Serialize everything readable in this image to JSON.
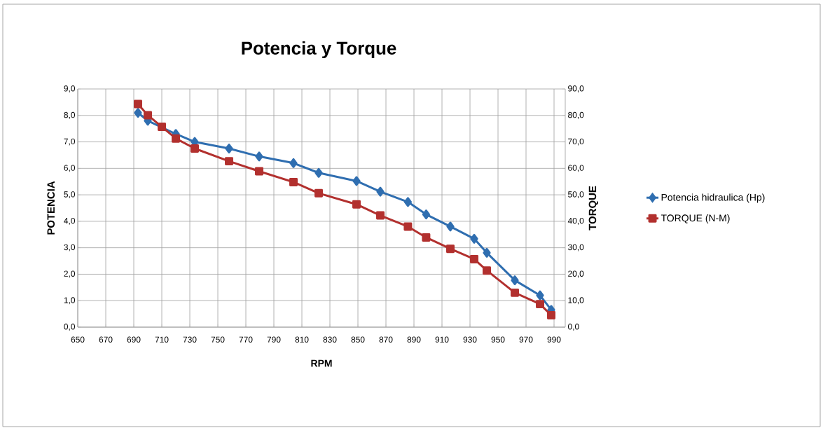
{
  "chart_data": {
    "type": "line",
    "title": "Potencia y Torque",
    "xlabel": "RPM",
    "ylabel": "POTENCIA",
    "y2label": "TORQUE",
    "xlim": [
      650,
      998
    ],
    "xticks": [
      650,
      670,
      690,
      710,
      730,
      750,
      770,
      790,
      810,
      830,
      850,
      870,
      890,
      910,
      930,
      950,
      970,
      990
    ],
    "ylim": [
      0,
      9
    ],
    "yticks": [
      {
        "value": 0,
        "label": "0,0"
      },
      {
        "value": 1,
        "label": "1,0"
      },
      {
        "value": 2,
        "label": "2,0"
      },
      {
        "value": 3,
        "label": "3,0"
      },
      {
        "value": 4,
        "label": "4,0"
      },
      {
        "value": 5,
        "label": "5,0"
      },
      {
        "value": 6,
        "label": "6,0"
      },
      {
        "value": 7,
        "label": "7,0"
      },
      {
        "value": 8,
        "label": "8,0"
      },
      {
        "value": 9,
        "label": "9,0"
      }
    ],
    "y2lim": [
      0,
      90
    ],
    "y2ticks": [
      {
        "value": 0,
        "label": "0,0"
      },
      {
        "value": 10,
        "label": "10,0"
      },
      {
        "value": 20,
        "label": "20,0"
      },
      {
        "value": 30,
        "label": "30,0"
      },
      {
        "value": 40,
        "label": "40,0"
      },
      {
        "value": 50,
        "label": "50,0"
      },
      {
        "value": 60,
        "label": "60,0"
      },
      {
        "value": 70,
        "label": "70,0"
      },
      {
        "value": 80,
        "label": "80,0"
      },
      {
        "value": 90,
        "label": "90,0"
      }
    ],
    "grid": true,
    "legend": "right",
    "line_style": "solid",
    "x": [
      693,
      700,
      710,
      720,
      733.5,
      758,
      779.5,
      804,
      822,
      849,
      866,
      885.7,
      898.7,
      916,
      933,
      942,
      962,
      980,
      988
    ],
    "series": [
      {
        "name": "Potencia hidraulica (Hp)",
        "color": "#2f6eb0",
        "marker": "diamond",
        "values": [
          8.1,
          7.8,
          null,
          7.3,
          7.0,
          6.75,
          6.45,
          6.2,
          5.83,
          5.52,
          5.12,
          4.73,
          4.26,
          3.8,
          3.34,
          2.81,
          1.77,
          1.2,
          0.65
        ]
      },
      {
        "name": "TORQUE    (N-M)",
        "color": "#b2302e",
        "marker": "square",
        "axis": "y2",
        "values": [
          84.3,
          80.1,
          75.7,
          71.3,
          67.5,
          62.7,
          58.9,
          54.8,
          50.6,
          46.4,
          42.2,
          38.0,
          33.9,
          29.6,
          25.7,
          21.4,
          13.0,
          8.7,
          4.5
        ]
      }
    ]
  }
}
